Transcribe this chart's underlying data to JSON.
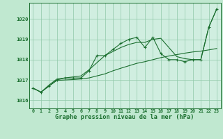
{
  "background_color": "#c0e8d0",
  "plot_bg_color": "#d0eee0",
  "grid_color": "#90c8a8",
  "line_color": "#1a6e2e",
  "title": "Graphe pression niveau de la mer (hPa)",
  "ylabel_ticks": [
    1016,
    1017,
    1018,
    1019,
    1020
  ],
  "xlim": [
    -0.5,
    23.5
  ],
  "ylim": [
    1015.6,
    1020.8
  ],
  "x_values": [
    0,
    1,
    2,
    3,
    4,
    5,
    6,
    7,
    8,
    9,
    10,
    11,
    12,
    13,
    14,
    15,
    16,
    17,
    18,
    19,
    20,
    21,
    22,
    23
  ],
  "series1": [
    1016.6,
    1016.4,
    1016.7,
    1017.0,
    1017.1,
    1017.1,
    1017.1,
    1017.45,
    1018.2,
    1018.2,
    1018.5,
    1018.8,
    1019.0,
    1019.1,
    1018.6,
    1019.1,
    1018.3,
    1018.0,
    1018.0,
    1017.9,
    1018.0,
    1018.0,
    1019.6,
    1020.5
  ],
  "series2": [
    1016.6,
    1016.4,
    1016.75,
    1017.05,
    1017.1,
    1017.15,
    1017.2,
    1017.5,
    1017.85,
    1018.2,
    1018.4,
    1018.6,
    1018.75,
    1018.85,
    1018.85,
    1019.0,
    1019.05,
    1018.6,
    1018.15,
    1018.05,
    1018.0,
    1018.0,
    1019.6,
    1020.5
  ],
  "series3": [
    1016.6,
    1016.4,
    1016.7,
    1016.98,
    1017.0,
    1017.02,
    1017.05,
    1017.1,
    1017.2,
    1017.3,
    1017.45,
    1017.58,
    1017.7,
    1017.82,
    1017.9,
    1018.0,
    1018.1,
    1018.18,
    1018.25,
    1018.32,
    1018.38,
    1018.42,
    1018.48,
    1018.55
  ]
}
